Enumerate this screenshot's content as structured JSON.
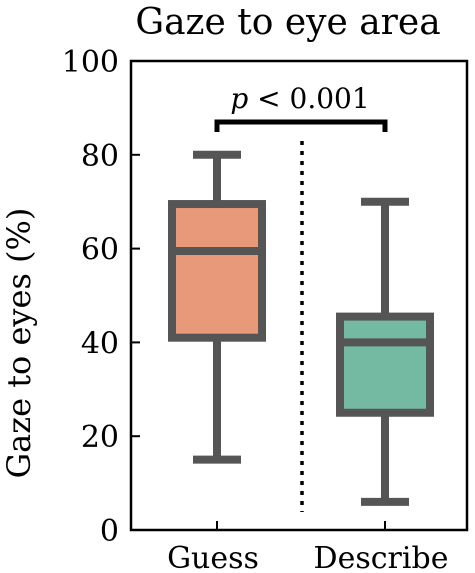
{
  "chart_data": {
    "type": "box",
    "title": "Gaze to eye area",
    "xlabel": "",
    "ylabel": "Gaze to eyes (%)",
    "ylim": [
      0,
      100
    ],
    "yticks": [
      "0",
      "20",
      "40",
      "60",
      "80",
      "100"
    ],
    "categories": [
      "Guess",
      "Describe"
    ],
    "boxes": [
      {
        "category": "Guess",
        "whisker_low": 15,
        "q1": 41,
        "median": 59.5,
        "q3": 69.5,
        "whisker_high": 80,
        "color": "#E8997A"
      },
      {
        "category": "Describe",
        "whisker_low": 6,
        "q1": 25,
        "median": 40,
        "q3": 45.5,
        "whisker_high": 70,
        "color": "#74BAA3"
      }
    ],
    "annotation": {
      "text_p": "p",
      "text_rest": " <  0.001"
    },
    "grid": false,
    "legend": "none",
    "colors": {
      "outline": "#555555",
      "axis": "#000000"
    }
  }
}
